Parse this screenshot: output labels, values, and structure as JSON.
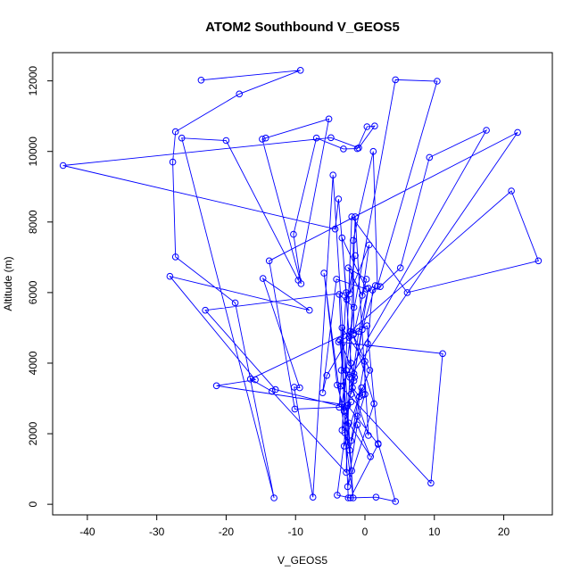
{
  "chart_data": {
    "type": "line",
    "title": "ATOM2 Southbound V_GEOS5",
    "xlabel": "V_GEOS5",
    "ylabel": "Altitude (m)",
    "xlim": [
      -45,
      27
    ],
    "ylim": [
      -300,
      12800
    ],
    "xticks": [
      -40,
      -30,
      -20,
      -10,
      0,
      10,
      20
    ],
    "yticks": [
      0,
      2000,
      4000,
      6000,
      8000,
      10000,
      12000
    ],
    "grid": false,
    "legend": "none",
    "marker": "open-circle",
    "colors": {
      "series": "#0000ff",
      "axis": "#000000"
    },
    "series": [
      {
        "x": [
          -23.6,
          -9.3,
          -18.1,
          -27.3,
          -27.7,
          -27.3,
          -18.7,
          -13.1,
          -26.4,
          -20.0,
          -9.6,
          -5.2,
          -14.3,
          -14.8,
          -9.2,
          -10.3,
          -7.0,
          -3.1,
          -1.1,
          0.3,
          1.4,
          -0.9,
          -4.9,
          -43.5,
          -4.3,
          -3.8,
          -2.6,
          -1.4,
          -2.2,
          0.6,
          -0.4,
          -2.4,
          0.2,
          -1.6,
          -1.7,
          1.2,
          1.8,
          10.4,
          4.4,
          -2.3,
          -5.5,
          -6.1,
          -4.1,
          0.2,
          -3.3,
          -2.0,
          -1.5,
          -1.6,
          -1.8,
          -0.8,
          -1.1,
          -2.2,
          -2.9,
          -3.0,
          -0.5,
          -0.3,
          -0.8,
          0.7,
          -1.7,
          1.3,
          -2.5,
          -1.1,
          0.8,
          -2.3,
          -3.0,
          -3.3,
          0.0,
          0.0,
          -2.0,
          0.4,
          1.1,
          2.2,
          5.1,
          9.3,
          17.5,
          -3.5,
          9.5,
          11.2,
          -3.8,
          0.3,
          1.9,
          4.4,
          1.6,
          -2.4,
          -3.7,
          -1.6,
          -3.3,
          -21.4,
          -15.8,
          -28.1,
          -8.0,
          -14.7,
          -9.4,
          -10.2,
          -7.5,
          -4.6,
          -1.7,
          -5.9,
          -4.0,
          -3.0,
          -1.9,
          -3.6,
          -1.6,
          -3.4,
          -2.2,
          22.0,
          -13.8,
          -10.1,
          -3.7,
          -2.7,
          -23.0,
          -12.9,
          -3.0,
          -1.9,
          6.1,
          25.0,
          21.1,
          -2.1,
          -16.5,
          -13.4,
          -2.7,
          -1.4,
          0.5,
          -2.7,
          -3.3,
          -2.0,
          -2.5,
          1.9,
          -2.1,
          -4.0,
          -0.9,
          0.5,
          -2.0,
          -0.4,
          1.5
        ],
        "y": [
          12020,
          12300,
          11630,
          10560,
          9700,
          7010,
          5710,
          180,
          10380,
          10310,
          6350,
          10920,
          10380,
          10350,
          6250,
          7650,
          10380,
          10070,
          10080,
          10700,
          10720,
          10100,
          10390,
          9600,
          7800,
          8650,
          5800,
          7050,
          5960,
          7350,
          5920,
          6700,
          6380,
          4840,
          7480,
          10000,
          6180,
          11990,
          12030,
          4730,
          3650,
          3160,
          6380,
          6100,
          7550,
          4000,
          3600,
          3500,
          3300,
          3050,
          2500,
          1530,
          2030,
          1650,
          3300,
          3100,
          3050,
          3800,
          4800,
          2850,
          500,
          2250,
          1350,
          2300,
          2630,
          5000,
          4050,
          3120,
          1800,
          4550,
          6070,
          6170,
          6700,
          9830,
          10600,
          3350,
          600,
          4270,
          4600,
          5060,
          1720,
          80,
          200,
          180,
          5950,
          5580,
          2830,
          3360,
          3530,
          6460,
          5500,
          6400,
          3300,
          3320,
          200,
          9330,
          180,
          6550,
          3380,
          2650,
          950,
          4650,
          3700,
          3800,
          3600,
          10540,
          6900,
          2700,
          2750,
          6000,
          5500,
          3250,
          2750,
          8150,
          6000,
          6900,
          8880,
          4900,
          3550,
          3200,
          900,
          8150,
          1950,
          3800,
          2100,
          2900,
          2800,
          1700,
          180,
          260,
          4900,
          6120,
          3120,
          4950,
          6200
        ]
      }
    ]
  }
}
